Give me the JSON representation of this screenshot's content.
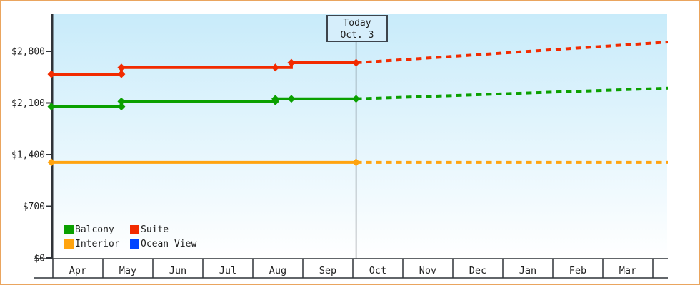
{
  "colors": {
    "frame_border": "#eaa55e",
    "plot_background_top": "#c8ebfa",
    "plot_background_bottom": "#ffffff",
    "axis": "#2f3338",
    "today_line": "#3b4046",
    "text": "#222222"
  },
  "legend": {
    "items": [
      {
        "label": "Balcony",
        "color": "#0aa000"
      },
      {
        "label": "Suite",
        "color": "#f22b00"
      },
      {
        "label": "Interior",
        "color": "#ffa40f"
      },
      {
        "label": "Ocean View",
        "color": "#0044ff"
      }
    ]
  },
  "chart_data": {
    "type": "line",
    "title": "",
    "xlabel": "",
    "ylabel": "",
    "grid": false,
    "legend_position": "bottom-left-inside",
    "ylim": [
      0,
      3315
    ],
    "xlim_months": [
      0,
      12.3
    ],
    "y_ticks": [
      {
        "value": 0,
        "label": "$0"
      },
      {
        "value": 700,
        "label": "$700"
      },
      {
        "value": 1400,
        "label": "$1,400"
      },
      {
        "value": 2100,
        "label": "$2,100"
      },
      {
        "value": 2800,
        "label": "$2,800"
      }
    ],
    "x_tick_labels": [
      "Apr",
      "May",
      "Jun",
      "Jul",
      "Aug",
      "Sep",
      "Oct",
      "Nov",
      "Dec",
      "Jan",
      "Feb",
      "Mar"
    ],
    "today": {
      "label": "Today",
      "date_label": "Oct. 3",
      "month_position": 6.065
    },
    "series": [
      {
        "name": "Balcony",
        "color": "#0aa000",
        "history": [
          {
            "m": 0,
            "date": "Apr",
            "value": 2050
          },
          {
            "m": 1.37,
            "date": "May 12",
            "value": 2050
          },
          {
            "m": 1.37,
            "date": "May 12",
            "value": 2120
          },
          {
            "m": 4.45,
            "date": "Aug 14",
            "value": 2120
          },
          {
            "m": 4.45,
            "date": "Aug 14",
            "value": 2155
          },
          {
            "m": 6.065,
            "date": "Oct 3",
            "value": 2155
          }
        ],
        "markers": [
          [
            0,
            2050
          ],
          [
            1.37,
            2050
          ],
          [
            1.37,
            2120
          ],
          [
            4.45,
            2120
          ],
          [
            4.45,
            2155
          ],
          [
            4.77,
            2155
          ],
          [
            6.065,
            2155
          ]
        ],
        "forecast": [
          {
            "m": 6.065,
            "value": 2155
          },
          {
            "m": 12.3,
            "value": 2300
          }
        ]
      },
      {
        "name": "Suite",
        "color": "#f22b00",
        "history": [
          {
            "m": 0,
            "date": "Apr",
            "value": 2490
          },
          {
            "m": 1.37,
            "date": "May 12",
            "value": 2490
          },
          {
            "m": 1.37,
            "date": "May 12",
            "value": 2580
          },
          {
            "m": 4.77,
            "date": "Aug 24",
            "value": 2580
          },
          {
            "m": 4.77,
            "date": "Aug 24",
            "value": 2645
          },
          {
            "m": 6.065,
            "date": "Oct 3",
            "value": 2645
          }
        ],
        "markers": [
          [
            0,
            2490
          ],
          [
            1.37,
            2490
          ],
          [
            1.37,
            2580
          ],
          [
            4.45,
            2580
          ],
          [
            4.77,
            2645
          ],
          [
            6.065,
            2645
          ]
        ],
        "forecast": [
          {
            "m": 6.065,
            "value": 2645
          },
          {
            "m": 12.3,
            "value": 2925
          }
        ]
      },
      {
        "name": "Interior",
        "color": "#ffa40f",
        "history": [
          {
            "m": 0,
            "date": "Apr",
            "value": 1295
          },
          {
            "m": 6.065,
            "date": "Oct 3",
            "value": 1295
          }
        ],
        "markers": [
          [
            0,
            1295
          ],
          [
            6.065,
            1295
          ]
        ],
        "forecast": [
          {
            "m": 6.065,
            "value": 1295
          },
          {
            "m": 12.3,
            "value": 1295
          }
        ]
      },
      {
        "name": "Ocean View",
        "color": "#0044ff",
        "history": [],
        "markers": [],
        "forecast": []
      }
    ]
  }
}
